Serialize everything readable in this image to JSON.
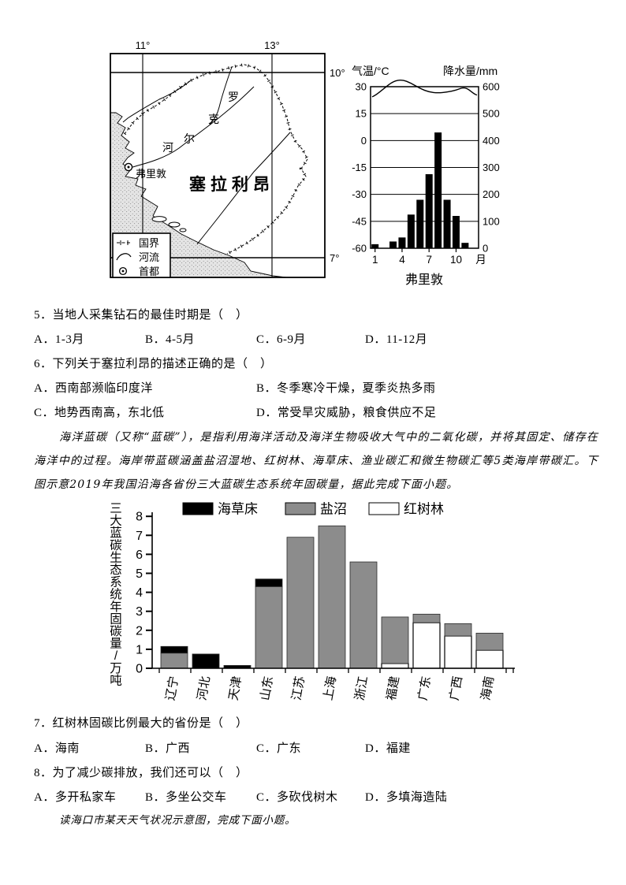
{
  "map": {
    "lon_labels": [
      "11°",
      "13°"
    ],
    "lat_labels": [
      "10°",
      "7°"
    ],
    "country_label": "塞拉利昂",
    "capital_label": "弗里敦",
    "river_chars": [
      "罗",
      "克",
      "尔",
      "河"
    ],
    "legend": {
      "boundary": "国界",
      "river": "河流",
      "capital": "首都"
    }
  },
  "chart_data": [
    {
      "type": "climate bar+line",
      "station": "弗里敦",
      "left_axis_label": "气温/°C",
      "right_axis_label": "降水量/mm",
      "left_ticks": [
        30,
        15,
        0,
        -15,
        -30,
        -45,
        -60
      ],
      "right_ticks": [
        600,
        500,
        400,
        300,
        200,
        100,
        0
      ],
      "left_range": [
        -60,
        30
      ],
      "right_range": [
        0,
        600
      ],
      "x_tick_months": [
        1,
        4,
        7,
        10
      ],
      "x_ticks": [
        "1",
        "4",
        "7",
        "10"
      ],
      "x_unit": "月",
      "months": [
        1,
        2,
        3,
        4,
        5,
        6,
        7,
        8,
        9,
        10,
        11,
        12
      ],
      "temperature_c": [
        25,
        29,
        33,
        34,
        32,
        29,
        27,
        26.5,
        27,
        28,
        30,
        26
      ],
      "precipitation_mm": [
        15,
        0,
        25,
        40,
        125,
        180,
        275,
        430,
        180,
        120,
        20,
        0
      ]
    },
    {
      "type": "stacked-bar",
      "ylabel": "三大蓝碳生态系统年固碳量/万吨",
      "ylim": [
        0,
        8
      ],
      "yticks": [
        0,
        1,
        2,
        3,
        4,
        5,
        6,
        7,
        8
      ],
      "grid": false,
      "legend_position": "top",
      "categories": [
        "辽宁",
        "河北",
        "天津",
        "山东",
        "江苏",
        "上海",
        "浙江",
        "福建",
        "广东",
        "广西",
        "海南"
      ],
      "legend": [
        {
          "name": "海草床",
          "color": "#000000"
        },
        {
          "name": "盐沼",
          "color": "#8c8c8c"
        },
        {
          "name": "红树林",
          "color": "#ffffff"
        }
      ],
      "series": [
        {
          "name": "红树林",
          "color": "#ffffff",
          "values": [
            0,
            0,
            0,
            0,
            0,
            0,
            0,
            0.25,
            2.4,
            1.7,
            0.95
          ]
        },
        {
          "name": "盐沼",
          "color": "#8c8c8c",
          "values": [
            0.8,
            0,
            0,
            4.3,
            6.9,
            7.5,
            5.6,
            2.45,
            0.45,
            0.65,
            0.9
          ]
        },
        {
          "name": "海草床",
          "color": "#000000",
          "values": [
            0.35,
            0.75,
            0.15,
            0.4,
            0,
            0,
            0,
            0,
            0,
            0,
            0
          ]
        }
      ],
      "totals": [
        1.15,
        0.75,
        0.15,
        4.7,
        6.9,
        7.5,
        5.6,
        2.7,
        2.85,
        2.35,
        1.85
      ]
    }
  ],
  "questions": {
    "q5": {
      "text": "5．当地人采集钻石的最佳时期是（　）",
      "options": [
        "A．1-3月",
        "B．4-5月",
        "C．6-9月",
        "D．11-12月"
      ]
    },
    "q6": {
      "text": "6．下列关于塞拉利昂的描述正确的是（　）",
      "options": [
        "A．西南部濒临印度洋",
        "B．冬季寒冷干燥，夏季炎热多雨",
        "C．地势西南高，东北低",
        "D．常受旱灾威胁，粮食供应不足"
      ]
    },
    "q7": {
      "text": "7．红树林固碳比例最大的省份是（　）",
      "options": [
        "A．海南",
        "B．广西",
        "C．广东",
        "D．福建"
      ]
    },
    "q8": {
      "text": "8．为了减少碳排放，我们还可以（　）",
      "options": [
        "A．多开私家车",
        "B．多坐公交车",
        "C．多砍伐树木",
        "D．多填海造陆"
      ]
    }
  },
  "passages": {
    "blue_carbon": "海洋蓝碳（又称“蓝碳”），是指利用海洋活动及海洋生物吸收大气中的二氧化碳，并将其固定、储存在海洋中的过程。海岸带蓝碳涵盖盐沼湿地、红树林、海草床、渔业碳汇和微生物碳汇等5类海岸带碳汇。下图示意2019年我国沿海各省份三大蓝碳生态系统年固碳量，据此完成下面小题。",
    "haikou": "读海口市某天天气状况示意图，完成下面小题。"
  }
}
